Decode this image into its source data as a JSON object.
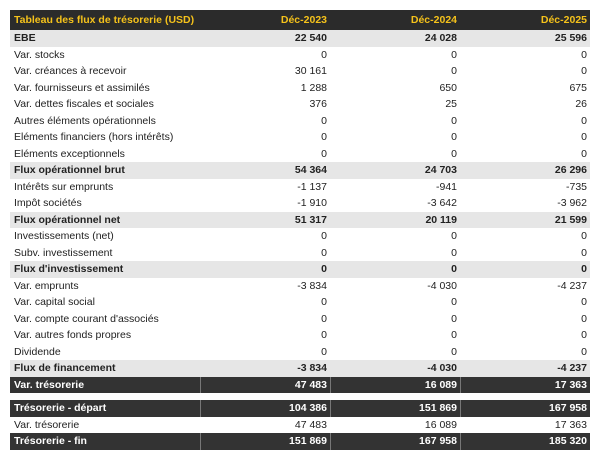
{
  "table": {
    "header": [
      "Tableau des flux de trésorerie (USD)",
      "Déc-2023",
      "Déc-2024",
      "Déc-2025"
    ],
    "rows": [
      {
        "cells": [
          "EBE",
          "22 540",
          "24 028",
          "25 596"
        ],
        "style": "subtotal"
      },
      {
        "cells": [
          "Var. stocks",
          "0",
          "0",
          "0"
        ],
        "style": "normal"
      },
      {
        "cells": [
          "Var. créances à recevoir",
          "30 161",
          "0",
          "0"
        ],
        "style": "normal"
      },
      {
        "cells": [
          "Var. fournisseurs et assimilés",
          "1 288",
          "650",
          "675"
        ],
        "style": "normal"
      },
      {
        "cells": [
          "Var. dettes fiscales et sociales",
          "376",
          "25",
          "26"
        ],
        "style": "normal"
      },
      {
        "cells": [
          "Autres éléments opérationnels",
          "0",
          "0",
          "0"
        ],
        "style": "normal"
      },
      {
        "cells": [
          "Eléments financiers (hors intérêts)",
          "0",
          "0",
          "0"
        ],
        "style": "normal"
      },
      {
        "cells": [
          "Eléments exceptionnels",
          "0",
          "0",
          "0"
        ],
        "style": "normal"
      },
      {
        "cells": [
          "Flux opérationnel brut",
          "54 364",
          "24 703",
          "26 296"
        ],
        "style": "subtotal"
      },
      {
        "cells": [
          "Intérêts sur emprunts",
          "-1 137",
          "-941",
          "-735"
        ],
        "style": "normal"
      },
      {
        "cells": [
          "Impôt sociétés",
          "-1 910",
          "-3 642",
          "-3 962"
        ],
        "style": "normal"
      },
      {
        "cells": [
          "Flux opérationnel net",
          "51 317",
          "20 119",
          "21 599"
        ],
        "style": "subtotal"
      },
      {
        "cells": [
          "Investissements (net)",
          "0",
          "0",
          "0"
        ],
        "style": "normal"
      },
      {
        "cells": [
          "Subv. investissement",
          "0",
          "0",
          "0"
        ],
        "style": "normal"
      },
      {
        "cells": [
          "Flux d'investissement",
          "0",
          "0",
          "0"
        ],
        "style": "subtotal"
      },
      {
        "cells": [
          "Var. emprunts",
          "-3 834",
          "-4 030",
          "-4 237"
        ],
        "style": "normal"
      },
      {
        "cells": [
          "Var. capital social",
          "0",
          "0",
          "0"
        ],
        "style": "normal"
      },
      {
        "cells": [
          "Var. compte courant d'associés",
          "0",
          "0",
          "0"
        ],
        "style": "normal"
      },
      {
        "cells": [
          "Var. autres fonds propres",
          "0",
          "0",
          "0"
        ],
        "style": "normal"
      },
      {
        "cells": [
          "Dividende",
          "0",
          "0",
          "0"
        ],
        "style": "normal"
      },
      {
        "cells": [
          "Flux de financement",
          "-3 834",
          "-4 030",
          "-4 237"
        ],
        "style": "subtotal"
      },
      {
        "cells": [
          "Var. trésorerie",
          "47 483",
          "16 089",
          "17 363"
        ],
        "style": "total"
      }
    ],
    "summary": [
      {
        "cells": [
          "Trésorerie - départ",
          "104 386",
          "151 869",
          "167 958"
        ],
        "style": "total"
      },
      {
        "cells": [
          "Var. trésorerie",
          "47 483",
          "16 089",
          "17 363"
        ],
        "style": "normal"
      },
      {
        "cells": [
          "Trésorerie - fin",
          "151 869",
          "167 958",
          "185 320"
        ],
        "style": "total"
      }
    ]
  }
}
